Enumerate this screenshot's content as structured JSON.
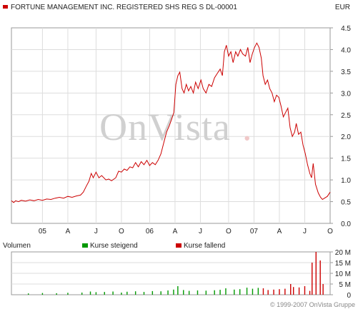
{
  "chart_data": [
    {
      "type": "line",
      "title": "FORTUNE MANAGEMENT INC. REGISTERED SHS REG S DL-00001",
      "currency": "EUR",
      "watermark": "OnVista",
      "watermark_dot": ".",
      "color": "#cc0000",
      "grid": true,
      "ylim": [
        0,
        4.5
      ],
      "yticks": [
        "0.0",
        "0.5",
        "1.0",
        "1.5",
        "2.0",
        "2.5",
        "3.0",
        "3.5",
        "4.0",
        "4.5"
      ],
      "xticks": [
        {
          "t": 0.11,
          "label": "05"
        },
        {
          "t": 0.2,
          "label": "A"
        },
        {
          "t": 0.3,
          "label": "J"
        },
        {
          "t": 0.39,
          "label": "O"
        },
        {
          "t": 0.49,
          "label": "06"
        },
        {
          "t": 0.58,
          "label": "A"
        },
        {
          "t": 0.67,
          "label": "J"
        },
        {
          "t": 0.77,
          "label": "O"
        },
        {
          "t": 0.86,
          "label": "07"
        },
        {
          "t": 0.95,
          "label": "A"
        },
        {
          "t": 1.04,
          "label": "J"
        },
        {
          "t": 1.13,
          "label": "O"
        }
      ],
      "points": [
        [
          0.0,
          0.52
        ],
        [
          0.008,
          0.48
        ],
        [
          0.015,
          0.52
        ],
        [
          0.025,
          0.5
        ],
        [
          0.035,
          0.53
        ],
        [
          0.05,
          0.51
        ],
        [
          0.065,
          0.54
        ],
        [
          0.08,
          0.52
        ],
        [
          0.095,
          0.55
        ],
        [
          0.11,
          0.53
        ],
        [
          0.125,
          0.56
        ],
        [
          0.14,
          0.55
        ],
        [
          0.155,
          0.58
        ],
        [
          0.17,
          0.6
        ],
        [
          0.185,
          0.58
        ],
        [
          0.2,
          0.62
        ],
        [
          0.215,
          0.6
        ],
        [
          0.23,
          0.63
        ],
        [
          0.245,
          0.65
        ],
        [
          0.255,
          0.72
        ],
        [
          0.265,
          0.85
        ],
        [
          0.275,
          0.97
        ],
        [
          0.283,
          1.15
        ],
        [
          0.29,
          1.05
        ],
        [
          0.3,
          1.18
        ],
        [
          0.31,
          1.05
        ],
        [
          0.32,
          1.1
        ],
        [
          0.335,
          1.0
        ],
        [
          0.345,
          1.02
        ],
        [
          0.355,
          0.98
        ],
        [
          0.37,
          1.05
        ],
        [
          0.38,
          1.2
        ],
        [
          0.39,
          1.18
        ],
        [
          0.4,
          1.25
        ],
        [
          0.41,
          1.22
        ],
        [
          0.42,
          1.3
        ],
        [
          0.43,
          1.28
        ],
        [
          0.44,
          1.4
        ],
        [
          0.45,
          1.3
        ],
        [
          0.46,
          1.42
        ],
        [
          0.47,
          1.35
        ],
        [
          0.48,
          1.45
        ],
        [
          0.49,
          1.33
        ],
        [
          0.5,
          1.4
        ],
        [
          0.51,
          1.35
        ],
        [
          0.52,
          1.45
        ],
        [
          0.53,
          1.6
        ],
        [
          0.54,
          1.85
        ],
        [
          0.55,
          2.1
        ],
        [
          0.56,
          2.25
        ],
        [
          0.568,
          2.4
        ],
        [
          0.576,
          2.55
        ],
        [
          0.583,
          3.2
        ],
        [
          0.59,
          3.4
        ],
        [
          0.597,
          3.48
        ],
        [
          0.605,
          3.1
        ],
        [
          0.612,
          3.0
        ],
        [
          0.62,
          3.2
        ],
        [
          0.628,
          3.05
        ],
        [
          0.636,
          3.15
        ],
        [
          0.645,
          3.0
        ],
        [
          0.653,
          3.25
        ],
        [
          0.662,
          3.1
        ],
        [
          0.672,
          3.3
        ],
        [
          0.68,
          3.1
        ],
        [
          0.69,
          3.0
        ],
        [
          0.7,
          3.2
        ],
        [
          0.71,
          3.15
        ],
        [
          0.72,
          3.35
        ],
        [
          0.73,
          3.45
        ],
        [
          0.74,
          3.55
        ],
        [
          0.748,
          3.4
        ],
        [
          0.755,
          3.95
        ],
        [
          0.762,
          4.1
        ],
        [
          0.77,
          3.85
        ],
        [
          0.778,
          3.95
        ],
        [
          0.786,
          3.7
        ],
        [
          0.795,
          3.95
        ],
        [
          0.803,
          3.85
        ],
        [
          0.812,
          4.0
        ],
        [
          0.82,
          3.9
        ],
        [
          0.83,
          3.85
        ],
        [
          0.838,
          4.05
        ],
        [
          0.846,
          3.7
        ],
        [
          0.854,
          3.9
        ],
        [
          0.862,
          4.05
        ],
        [
          0.87,
          4.15
        ],
        [
          0.878,
          4.05
        ],
        [
          0.886,
          3.8
        ],
        [
          0.892,
          3.4
        ],
        [
          0.9,
          3.2
        ],
        [
          0.908,
          3.3
        ],
        [
          0.916,
          3.1
        ],
        [
          0.924,
          3.0
        ],
        [
          0.932,
          2.8
        ],
        [
          0.94,
          2.95
        ],
        [
          0.948,
          2.9
        ],
        [
          0.956,
          2.7
        ],
        [
          0.964,
          2.45
        ],
        [
          0.972,
          2.55
        ],
        [
          0.98,
          2.65
        ],
        [
          0.988,
          2.2
        ],
        [
          0.996,
          2.0
        ],
        [
          1.004,
          2.1
        ],
        [
          1.01,
          2.3
        ],
        [
          1.018,
          2.05
        ],
        [
          1.026,
          2.1
        ],
        [
          1.034,
          1.8
        ],
        [
          1.042,
          1.6
        ],
        [
          1.05,
          1.35
        ],
        [
          1.058,
          1.15
        ],
        [
          1.064,
          1.05
        ],
        [
          1.07,
          1.38
        ],
        [
          1.078,
          0.9
        ],
        [
          1.088,
          0.7
        ],
        [
          1.096,
          0.6
        ],
        [
          1.103,
          0.55
        ],
        [
          1.11,
          0.58
        ],
        [
          1.12,
          0.62
        ],
        [
          1.13,
          0.72
        ]
      ]
    },
    {
      "type": "bar",
      "title": "Volumen",
      "legend": [
        {
          "name": "Kurse steigend",
          "color": "#009900"
        },
        {
          "name": "Kurse fallend",
          "color": "#cc0000"
        }
      ],
      "ylim": [
        0,
        20
      ],
      "unit": "M",
      "yticks": [
        "0",
        "5 M",
        "10 M",
        "15 M",
        "20 M"
      ],
      "bars": [
        [
          0.06,
          0.6,
          "u"
        ],
        [
          0.11,
          0.8,
          "u"
        ],
        [
          0.16,
          0.7,
          "u"
        ],
        [
          0.2,
          0.9,
          "u"
        ],
        [
          0.25,
          1.0,
          "u"
        ],
        [
          0.28,
          1.5,
          "u"
        ],
        [
          0.3,
          1.2,
          "u"
        ],
        [
          0.33,
          1.3,
          "u"
        ],
        [
          0.36,
          1.5,
          "u"
        ],
        [
          0.39,
          1.0,
          "u"
        ],
        [
          0.41,
          1.4,
          "u"
        ],
        [
          0.44,
          1.6,
          "u"
        ],
        [
          0.47,
          1.3,
          "u"
        ],
        [
          0.5,
          1.7,
          "u"
        ],
        [
          0.53,
          1.6,
          "u"
        ],
        [
          0.555,
          2.0,
          "u"
        ],
        [
          0.575,
          2.4,
          "u"
        ],
        [
          0.59,
          4.0,
          "u"
        ],
        [
          0.61,
          2.2,
          "u"
        ],
        [
          0.63,
          1.8,
          "u"
        ],
        [
          0.66,
          2.0,
          "u"
        ],
        [
          0.69,
          1.9,
          "u"
        ],
        [
          0.72,
          2.1,
          "u"
        ],
        [
          0.74,
          2.3,
          "u"
        ],
        [
          0.76,
          3.0,
          "u"
        ],
        [
          0.79,
          2.4,
          "u"
        ],
        [
          0.81,
          2.6,
          "u"
        ],
        [
          0.835,
          3.3,
          "u"
        ],
        [
          0.855,
          2.8,
          "u"
        ],
        [
          0.875,
          3.2,
          "u"
        ],
        [
          0.893,
          3.0,
          "d"
        ],
        [
          0.91,
          2.2,
          "d"
        ],
        [
          0.93,
          2.4,
          "d"
        ],
        [
          0.95,
          2.6,
          "d"
        ],
        [
          0.97,
          2.8,
          "d"
        ],
        [
          0.99,
          5.0,
          "d"
        ],
        [
          1.0,
          3.6,
          "d"
        ],
        [
          1.02,
          3.4,
          "d"
        ],
        [
          1.04,
          4.0,
          "d"
        ],
        [
          1.058,
          1.8,
          "d"
        ],
        [
          1.066,
          15.0,
          "d"
        ],
        [
          1.08,
          20.0,
          "d"
        ],
        [
          1.095,
          16.0,
          "d"
        ],
        [
          1.105,
          5.0,
          "d"
        ]
      ]
    }
  ],
  "footer": {
    "copyright": "© 1999-2007 OnVista Gruppe"
  }
}
